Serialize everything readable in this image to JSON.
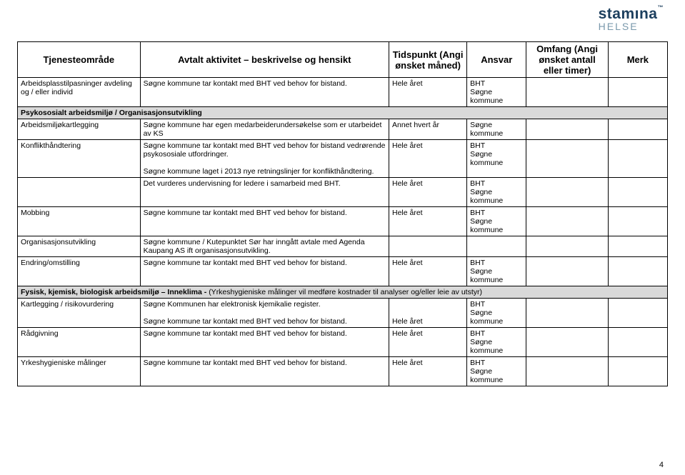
{
  "logo": {
    "brand": "stamına",
    "sub": "HELSE",
    "tm": "™"
  },
  "page_number": "4",
  "columns": {
    "c1": "Tjenesteområde",
    "c2": "Avtalt aktivitet – beskrivelse og hensikt",
    "c3": "Tidspunkt",
    "c3_sub": "(Angi ønsket måned)",
    "c4": "Ansvar",
    "c5": "Omfang",
    "c5_sub": "(Angi ønsket antall eller timer)",
    "c6": "Merk"
  },
  "rows": [
    {
      "t": "data",
      "c1": "Arbeidsplasstilpasninger avdeling og / eller individ",
      "c2": "Søgne kommune tar kontakt med BHT ved behov for bistand.",
      "c3": "Hele året",
      "c4": "BHT\nSøgne kommune"
    },
    {
      "t": "section",
      "label_bold": "Psykososialt arbeidsmiljø / Organisasjonsutvikling",
      "label_rest": ""
    },
    {
      "t": "data",
      "c1": "Arbeidsmiljøkartlegging",
      "c2": "Søgne kommune har egen medarbeiderundersøkelse som er utarbeidet av KS",
      "c3": "Annet hvert år",
      "c4": "Søgne kommune"
    },
    {
      "t": "data",
      "c1": "Konflikthåndtering",
      "c2": "Søgne kommune tar kontakt med BHT ved behov for bistand vedrørende psykososiale utfordringer.\n\nSøgne kommune laget i 2013 nye retningslinjer for konflikthåndtering.",
      "c3": "Hele året",
      "c4": "BHT\nSøgne kommune"
    },
    {
      "t": "data",
      "c1": "",
      "c2": "Det vurderes undervisning for ledere i samarbeid med BHT.",
      "c3": "Hele året",
      "c4": "BHT\nSøgne kommune"
    },
    {
      "t": "data",
      "c1": "Mobbing",
      "c2": "Søgne kommune tar kontakt med BHT ved behov for bistand.",
      "c3": "Hele året",
      "c4": "BHT\nSøgne kommune"
    },
    {
      "t": "data",
      "c1": "Organisasjonsutvikling",
      "c2": "Søgne kommune / Kutepunktet Sør har inngått avtale med Agenda Kaupang AS ift organisasjonsutvikling.",
      "c3": "",
      "c4": ""
    },
    {
      "t": "data",
      "c1": "Endring/omstilling",
      "c2": "Søgne kommune tar kontakt med BHT ved behov for bistand.",
      "c3": "Hele året",
      "c4": "BHT\nSøgne kommune"
    },
    {
      "t": "section",
      "label_bold": "Fysisk, kjemisk, biologisk arbeidsmiljø – Inneklima - ",
      "label_rest": "(Yrkeshygieniske målinger vil medføre kostnader til analyser og/eller leie av utstyr)"
    },
    {
      "t": "data",
      "c1": "Kartlegging / risikovurdering",
      "c2": "Søgne Kommunen har elektronisk kjemikalie register.\n\nSøgne kommune tar kontakt med BHT ved behov for bistand.",
      "c3": "\n\nHele året",
      "c4": "BHT\nSøgne kommune"
    },
    {
      "t": "data",
      "c1": "Rådgivning",
      "c2": "Søgne kommune tar kontakt med BHT ved behov for bistand.",
      "c3": "Hele året",
      "c4": "BHT\nSøgne kommune"
    },
    {
      "t": "data",
      "c1": "Yrkeshygieniske målinger",
      "c2": "Søgne kommune tar kontakt med BHT ved behov for bistand.",
      "c3": "Hele året",
      "c4": "BHT\nSøgne kommune"
    }
  ]
}
